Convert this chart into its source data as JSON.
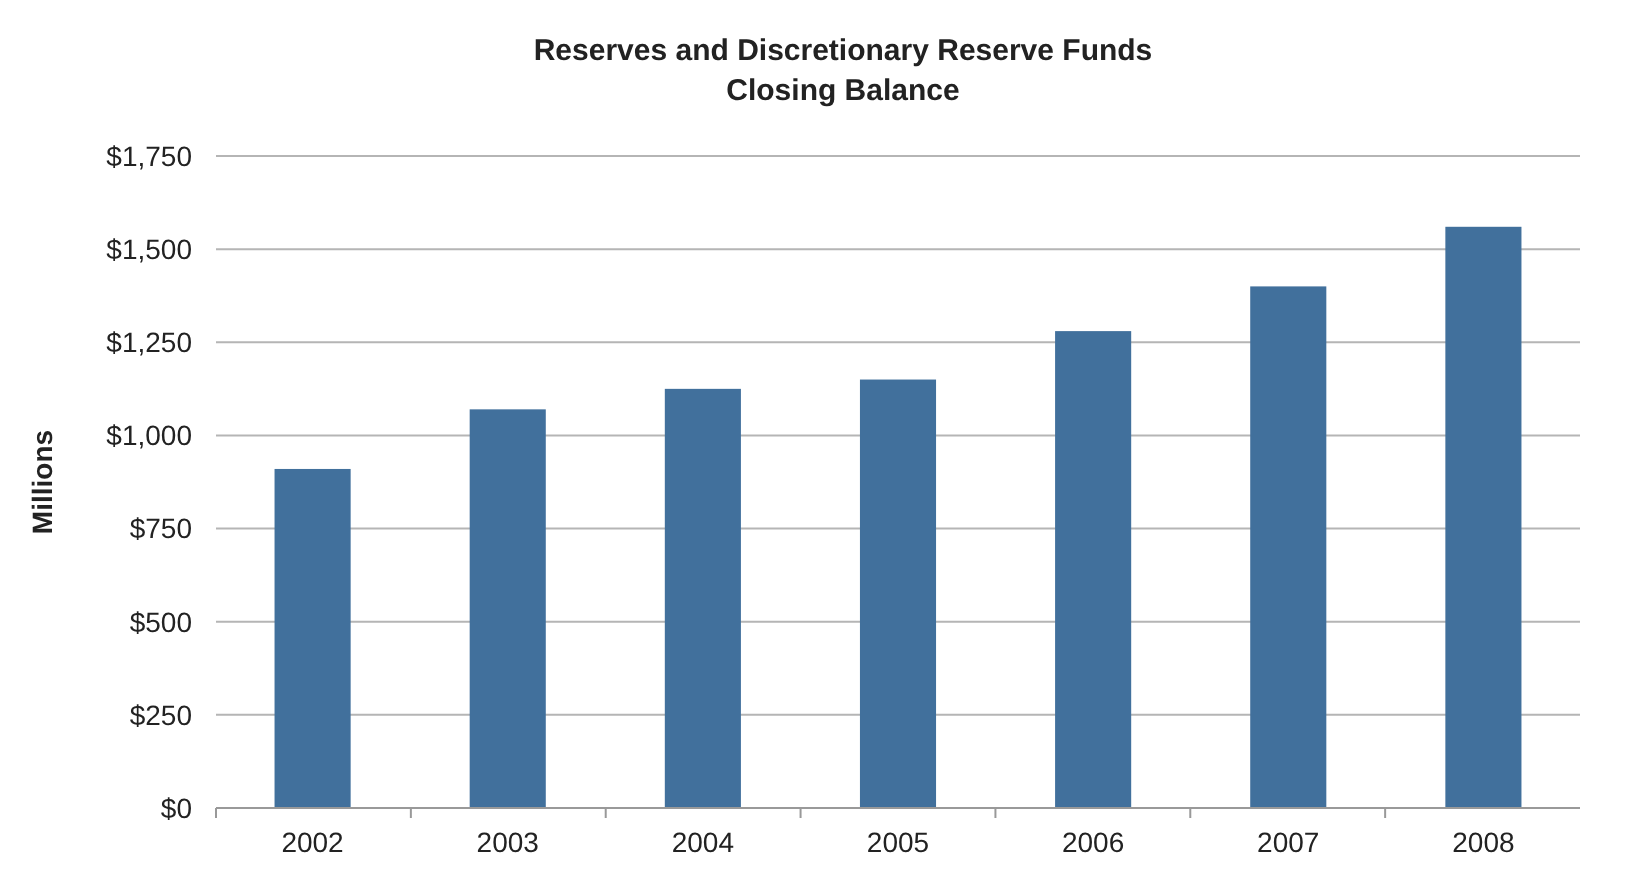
{
  "chart_data": {
    "type": "bar",
    "title": "Reserves and Discretionary Reserve Funds\nClosing Balance",
    "ylabel": "Millions",
    "categories": [
      "2002",
      "2003",
      "2004",
      "2005",
      "2006",
      "2007",
      "2008"
    ],
    "values": [
      910,
      1070,
      1125,
      1150,
      1280,
      1400,
      1560
    ],
    "color": "#41709c",
    "ylim": [
      0,
      1750
    ],
    "yticks": [
      {
        "value": 0,
        "label": "$0"
      },
      {
        "value": 250,
        "label": "$250"
      },
      {
        "value": 500,
        "label": "$500"
      },
      {
        "value": 750,
        "label": "$750"
      },
      {
        "value": 1000,
        "label": "$1,000"
      },
      {
        "value": 1250,
        "label": "$1,250"
      },
      {
        "value": 1500,
        "label": "$1,500"
      },
      {
        "value": 1750,
        "label": "$1,750"
      }
    ],
    "grid": "y"
  }
}
